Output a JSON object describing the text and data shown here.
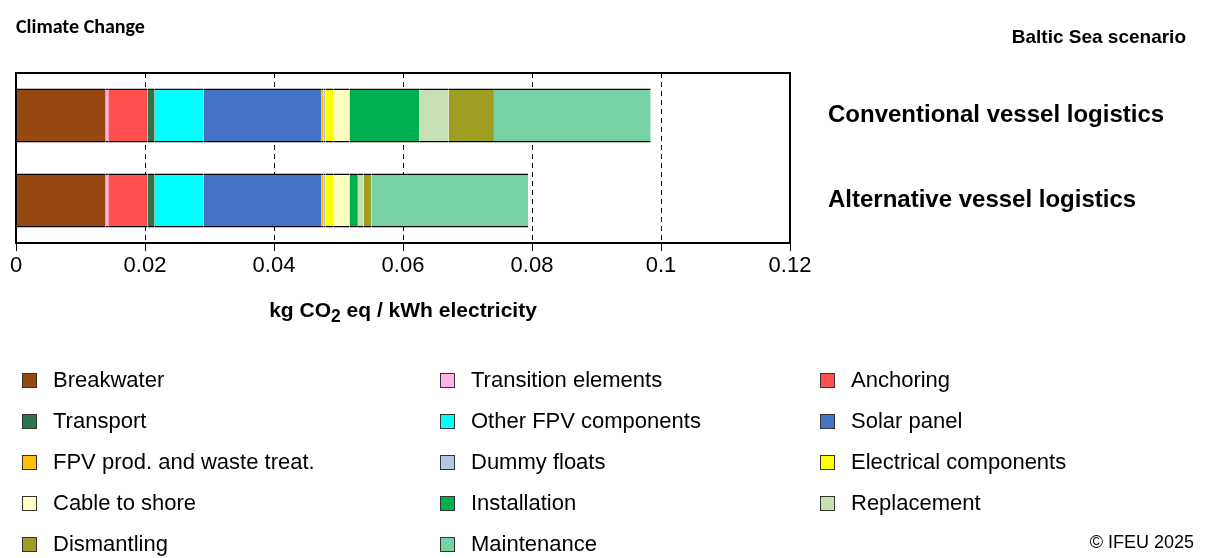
{
  "chart_data": {
    "type": "bar",
    "orientation": "horizontal",
    "stacked": true,
    "title": "Climate Change",
    "subtitle": "Baltic Sea scenario",
    "xlabel": "kg CO$_{2}$ eq / kWh electricity",
    "annotations": [
      "© IFEU 2025"
    ],
    "categories": [
      "Conventional vessel logistics",
      "Alternative vessel logistics"
    ],
    "xlim": [
      0,
      0.12
    ],
    "xticks": [
      0,
      0.02,
      0.04,
      0.06,
      0.08,
      0.1,
      0.12
    ],
    "grid": "x",
    "legend": "bottom",
    "series": [
      {
        "name": "Breakwater",
        "color": "#974810",
        "values": [
          0.0139,
          0.0139
        ]
      },
      {
        "name": "Transition elements",
        "color": "#ffb3e6",
        "values": [
          0.0004,
          0.0004
        ]
      },
      {
        "name": "Anchoring",
        "color": "#ff4f4f",
        "values": [
          0.0061,
          0.0061
        ]
      },
      {
        "name": "Transport",
        "color": "#2e7350",
        "values": [
          0.0011,
          0.0011
        ]
      },
      {
        "name": "Other FPV components",
        "color": "#00ffff",
        "values": [
          0.0076,
          0.0076
        ]
      },
      {
        "name": "Solar panel",
        "color": "#4472c4",
        "values": [
          0.0182,
          0.0182
        ]
      },
      {
        "name": "FPV prod. and waste treat.",
        "color": "#ffc000",
        "values": [
          0.0004,
          0.0004
        ]
      },
      {
        "name": "Dummy floats",
        "color": "#b4c7e7",
        "values": [
          0.0003,
          0.0003
        ]
      },
      {
        "name": "Electrical components",
        "color": "#ffff00",
        "values": [
          0.0012,
          0.0012
        ]
      },
      {
        "name": "Cable to shore",
        "color": "#ffffc0",
        "values": [
          0.0025,
          0.0025
        ]
      },
      {
        "name": "Installation",
        "color": "#00b050",
        "values": [
          0.0108,
          0.0013
        ]
      },
      {
        "name": "Replacement",
        "color": "#c6e0b4",
        "values": [
          0.0046,
          0.0009
        ]
      },
      {
        "name": "Dismantling",
        "color": "#9e9e22",
        "values": [
          0.007,
          0.0012
        ]
      },
      {
        "name": "Maintenance",
        "color": "#76d1a4",
        "values": [
          0.0243,
          0.0243
        ]
      }
    ]
  }
}
